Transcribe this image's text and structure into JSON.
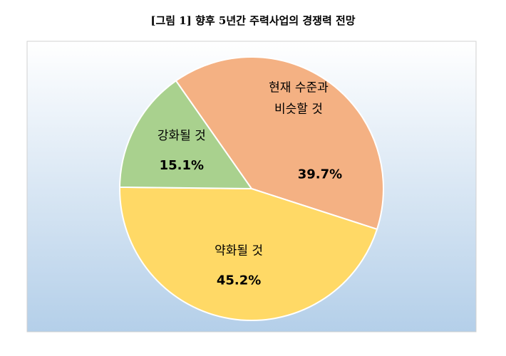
{
  "chart_data": {
    "type": "pie",
    "title": "[그림 1] 향후 5년간 주력사업의 경쟁력 전망",
    "categories": [
      [
        "현재 수준과",
        "비슷할 것"
      ],
      [
        "약화될 것"
      ],
      [
        "강화될 것"
      ]
    ],
    "values": [
      39.7,
      45.2,
      15.1
    ],
    "value_labels": [
      "39.7%",
      "45.2%",
      "15.1%"
    ],
    "colors": [
      "#f4b183",
      "#ffd966",
      "#a9d18e"
    ]
  }
}
